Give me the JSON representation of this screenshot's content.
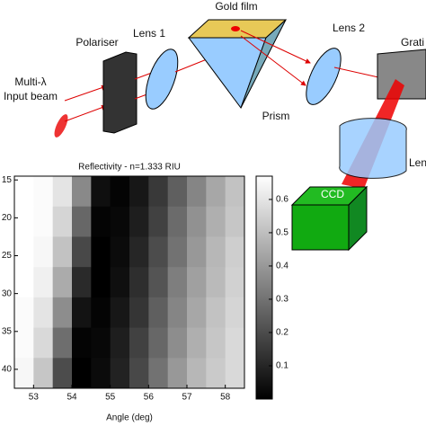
{
  "diagram": {
    "labels": [
      "Gold film",
      "Lens 1",
      "Lens 2",
      "Polariser",
      "Multi-λ",
      "Input beam",
      "Prism",
      "Grati",
      "CCD",
      "Len"
    ]
  },
  "chart_data": {
    "type": "heatmap",
    "title": "Reflectivity - n=1.333 RIU",
    "xlabel": "Angle (deg)",
    "x": [
      52.75,
      53.25,
      53.75,
      54.25,
      54.75,
      55.25,
      55.75,
      56.25,
      56.75,
      57.25,
      57.75,
      58.25
    ],
    "y": [
      16.5,
      20.5,
      24.5,
      28.5,
      32.5,
      36.5,
      40.5
    ],
    "values": [
      [
        0.67,
        0.66,
        0.6,
        0.36,
        0.04,
        0.01,
        0.06,
        0.15,
        0.25,
        0.35,
        0.44,
        0.51
      ],
      [
        0.67,
        0.66,
        0.56,
        0.27,
        0.01,
        0.02,
        0.08,
        0.17,
        0.28,
        0.38,
        0.46,
        0.52
      ],
      [
        0.67,
        0.65,
        0.51,
        0.19,
        0.0,
        0.03,
        0.1,
        0.2,
        0.3,
        0.4,
        0.48,
        0.54
      ],
      [
        0.67,
        0.63,
        0.45,
        0.11,
        0.0,
        0.04,
        0.12,
        0.22,
        0.33,
        0.42,
        0.49,
        0.55
      ],
      [
        0.66,
        0.6,
        0.37,
        0.05,
        0.01,
        0.06,
        0.14,
        0.25,
        0.35,
        0.44,
        0.51,
        0.56
      ],
      [
        0.66,
        0.57,
        0.29,
        0.01,
        0.02,
        0.08,
        0.17,
        0.27,
        0.37,
        0.46,
        0.52,
        0.57
      ],
      [
        0.65,
        0.52,
        0.2,
        0.0,
        0.03,
        0.09,
        0.19,
        0.3,
        0.4,
        0.48,
        0.53,
        0.57
      ]
    ],
    "xlim": [
      52.5,
      58.5
    ],
    "xticks": [
      53,
      54,
      55,
      56,
      57,
      58
    ],
    "ylim": [
      14.5,
      42.5
    ],
    "yticks": [
      15,
      20,
      25,
      30,
      35,
      40
    ],
    "y_inverted": true,
    "clim": [
      0,
      0.67
    ],
    "cticks": [
      0.1,
      0.2,
      0.3,
      0.4,
      0.5,
      0.6
    ],
    "colormap": "gray"
  }
}
